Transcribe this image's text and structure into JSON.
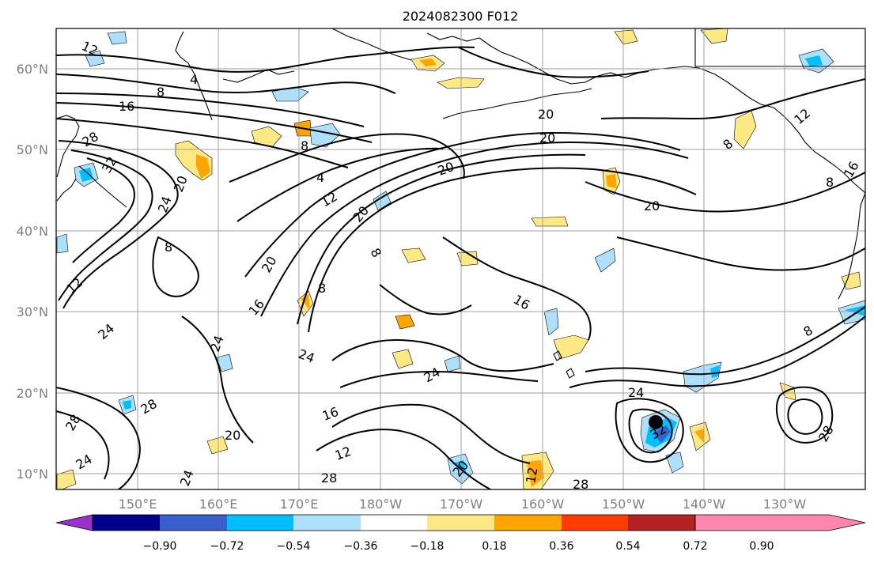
{
  "title": "2024082300 F012",
  "map": {
    "lat_ticks": [
      "10°N",
      "20°N",
      "30°N",
      "40°N",
      "50°N",
      "60°N"
    ],
    "lon_ticks": [
      "150°E",
      "160°E",
      "170°E",
      "180°W",
      "170°W",
      "160°W",
      "150°W",
      "140°W",
      "130°W"
    ],
    "lat_range": [
      8,
      65
    ],
    "lon_range": [
      "140°E",
      "120°W"
    ],
    "grid": true,
    "marker": "storm-center-dot"
  },
  "contour_labels": [
    "12",
    "8",
    "4",
    "16",
    "28",
    "32",
    "24",
    "20",
    "8",
    "12",
    "20",
    "20",
    "20",
    "20",
    "8",
    "4",
    "12",
    "20",
    "8",
    "20",
    "16",
    "8",
    "16",
    "24",
    "24",
    "24",
    "24",
    "24",
    "28",
    "28",
    "24",
    "20",
    "16",
    "12",
    "28",
    "28",
    "24",
    "32",
    "28",
    "8",
    "12",
    "16",
    "8",
    "8",
    "20",
    "12"
  ],
  "colorbar": {
    "ticks": [
      "−0.90",
      "−0.72",
      "−0.54",
      "−0.36",
      "−0.18",
      "0.18",
      "0.36",
      "0.54",
      "0.72",
      "0.90"
    ],
    "colors": [
      "#9932cc",
      "#00008b",
      "#3a5fcd",
      "#00bfff",
      "#afe0fb",
      "#ffffff",
      "#ffe985",
      "#ffa500",
      "#ff3c00",
      "#b22222",
      "#ff86ae"
    ]
  }
}
